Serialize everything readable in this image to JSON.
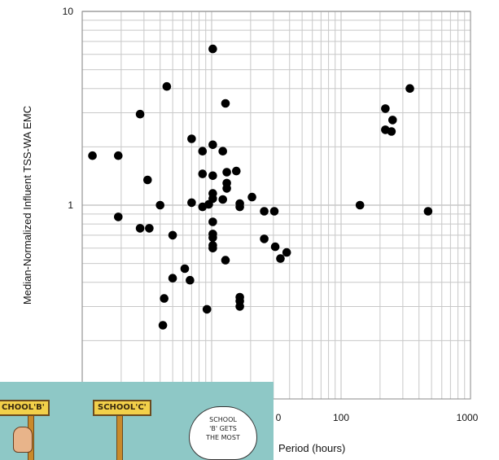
{
  "chart_data": {
    "type": "scatter",
    "title": "",
    "xlabel": "Period (hours)",
    "ylabel": "Median-Normalized Influent TSS-WA EMC",
    "xscale": "log",
    "yscale": "log",
    "xlim": [
      1,
      1000
    ],
    "ylim": [
      0.2,
      10
    ],
    "grid": true,
    "x_tick_labels": [
      "0",
      "100",
      "1000"
    ],
    "y_tick_labels": [
      "10",
      "1"
    ],
    "points": [
      {
        "x": 10.2,
        "y": 6.4
      },
      {
        "x": 12.8,
        "y": 3.35
      },
      {
        "x": 4.5,
        "y": 4.1
      },
      {
        "x": 340,
        "y": 4.0
      },
      {
        "x": 220,
        "y": 3.15
      },
      {
        "x": 250,
        "y": 2.75
      },
      {
        "x": 220,
        "y": 2.45
      },
      {
        "x": 245,
        "y": 2.4
      },
      {
        "x": 2.8,
        "y": 2.95
      },
      {
        "x": 1.2,
        "y": 1.8
      },
      {
        "x": 1.9,
        "y": 1.8
      },
      {
        "x": 7.0,
        "y": 2.2
      },
      {
        "x": 8.5,
        "y": 1.9
      },
      {
        "x": 10.2,
        "y": 2.05
      },
      {
        "x": 12.2,
        "y": 1.9
      },
      {
        "x": 8.5,
        "y": 1.45
      },
      {
        "x": 10.2,
        "y": 1.42
      },
      {
        "x": 13.1,
        "y": 1.48
      },
      {
        "x": 13.1,
        "y": 1.3
      },
      {
        "x": 15.5,
        "y": 1.5
      },
      {
        "x": 13.1,
        "y": 1.22
      },
      {
        "x": 3.2,
        "y": 1.35
      },
      {
        "x": 10.2,
        "y": 1.15
      },
      {
        "x": 10.2,
        "y": 1.08
      },
      {
        "x": 12.2,
        "y": 1.07
      },
      {
        "x": 7.0,
        "y": 1.03
      },
      {
        "x": 8.5,
        "y": 0.98
      },
      {
        "x": 9.5,
        "y": 1.01
      },
      {
        "x": 16.5,
        "y": 1.02
      },
      {
        "x": 16.5,
        "y": 0.98
      },
      {
        "x": 20.5,
        "y": 1.1
      },
      {
        "x": 4.0,
        "y": 1.0
      },
      {
        "x": 25.5,
        "y": 0.93
      },
      {
        "x": 30.5,
        "y": 0.93
      },
      {
        "x": 140,
        "y": 1.0
      },
      {
        "x": 470,
        "y": 0.93
      },
      {
        "x": 1.9,
        "y": 0.87
      },
      {
        "x": 2.8,
        "y": 0.76
      },
      {
        "x": 3.3,
        "y": 0.76
      },
      {
        "x": 5.0,
        "y": 0.7
      },
      {
        "x": 10.2,
        "y": 0.82
      },
      {
        "x": 10.2,
        "y": 0.71
      },
      {
        "x": 10.2,
        "y": 0.68
      },
      {
        "x": 10.2,
        "y": 0.62
      },
      {
        "x": 10.2,
        "y": 0.6
      },
      {
        "x": 25.5,
        "y": 0.67
      },
      {
        "x": 31,
        "y": 0.61
      },
      {
        "x": 38,
        "y": 0.57
      },
      {
        "x": 34,
        "y": 0.53
      },
      {
        "x": 12.8,
        "y": 0.52
      },
      {
        "x": 6.2,
        "y": 0.47
      },
      {
        "x": 5.0,
        "y": 0.42
      },
      {
        "x": 6.8,
        "y": 0.41
      },
      {
        "x": 4.3,
        "y": 0.33
      },
      {
        "x": 16.5,
        "y": 0.335
      },
      {
        "x": 16.5,
        "y": 0.32
      },
      {
        "x": 16.5,
        "y": 0.3
      },
      {
        "x": 9.2,
        "y": 0.29
      },
      {
        "x": 4.2,
        "y": 0.24
      }
    ]
  },
  "cartoon": {
    "sign_left": "CHOOL'B'",
    "sign_right": "SCHOOL'C'",
    "bubble_lines": [
      "SCHOOL",
      "'B' GETS",
      "THE MOST"
    ]
  },
  "colors": {
    "points": "#000000",
    "grid": "#c8c8c8",
    "frame": "#8a8a8a",
    "cartoon_bg": "#8ec8c6"
  }
}
